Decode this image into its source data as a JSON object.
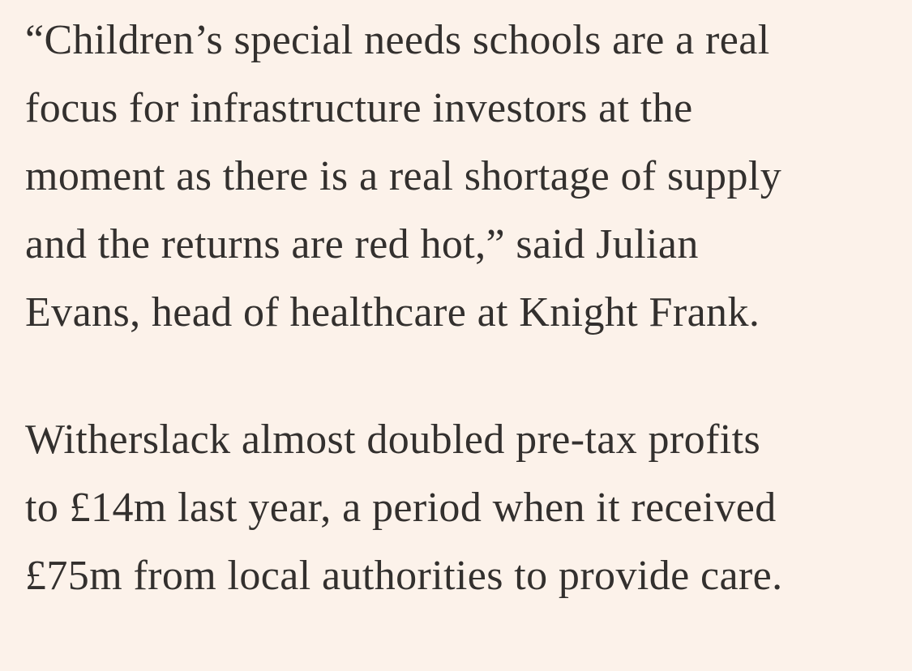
{
  "paragraphs": [
    {
      "lines": [
        "“Children’s special needs schools are a real",
        "focus for infrastructure investors at the",
        "moment as there is a real shortage of supply",
        "and the returns are red hot,” said Julian",
        "Evans, head of healthcare at Knight Frank."
      ]
    },
    {
      "lines": [
        "Witherslack almost doubled pre-tax profits",
        "to £14m last year, a period when it received",
        "£75m from local authorities to provide care."
      ]
    }
  ]
}
